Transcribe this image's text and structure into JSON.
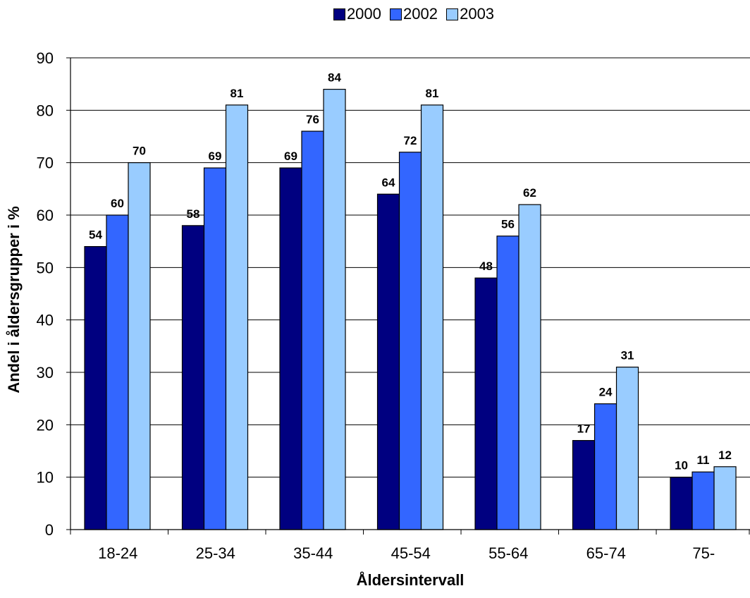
{
  "chart_data": {
    "type": "bar",
    "categories": [
      "18-24",
      "25-34",
      "35-44",
      "45-54",
      "55-64",
      "65-74",
      "75-"
    ],
    "series": [
      {
        "name": "2000",
        "values": [
          54,
          58,
          69,
          64,
          48,
          17,
          10
        ],
        "color": "#000080"
      },
      {
        "name": "2002",
        "values": [
          60,
          69,
          76,
          72,
          56,
          24,
          11
        ],
        "color": "#3366ff"
      },
      {
        "name": "2003",
        "values": [
          70,
          81,
          84,
          81,
          62,
          31,
          12
        ],
        "color": "#99ccff"
      }
    ],
    "title": "",
    "xlabel": "Åldersintervall",
    "ylabel": "Andel i åldersgrupper i %",
    "ylim": [
      0,
      90
    ],
    "yticks": [
      "0",
      "10",
      "20",
      "30",
      "40",
      "50",
      "60",
      "70",
      "80",
      "90"
    ],
    "grid": true,
    "legend_position": "top"
  }
}
